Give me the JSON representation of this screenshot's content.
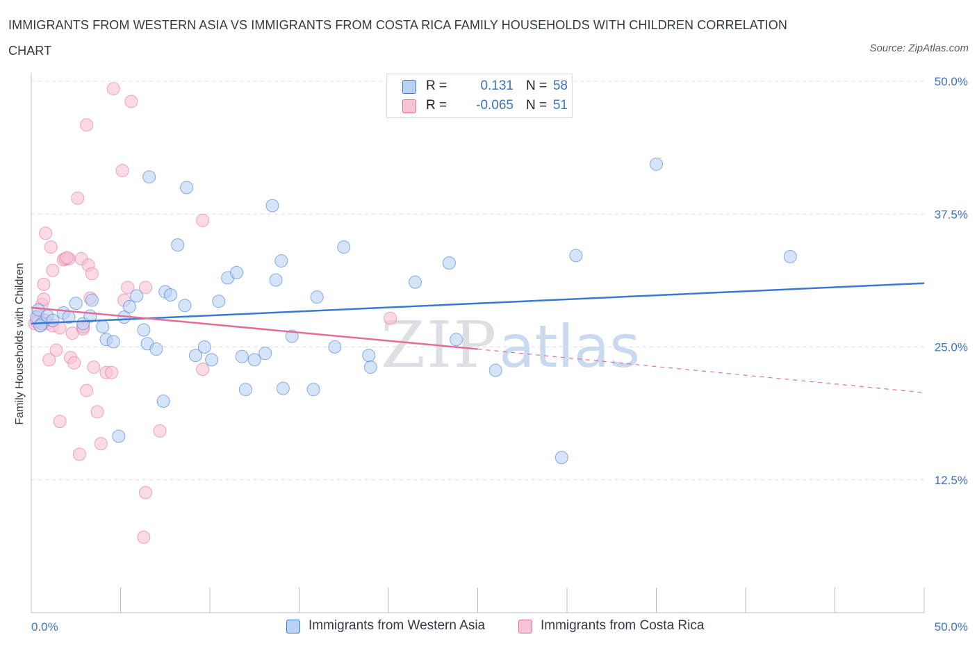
{
  "title": "IMMIGRANTS FROM WESTERN ASIA VS IMMIGRANTS FROM COSTA RICA FAMILY HOUSEHOLDS WITH CHILDREN CORRELATION CHART",
  "source": "Source: ZipAtlas.com",
  "watermark": {
    "zip": "ZIP",
    "atlas": "atlas"
  },
  "colors": {
    "blue": "#3a78d4",
    "blue_fill": "#b9d2f3",
    "pink": "#e36d96",
    "pink_fill": "#f6c3d4",
    "axis_text": "#3d72c4",
    "grid": "#d9dce2"
  },
  "stats": {
    "r_label": "R =",
    "n_label": "N =",
    "blue": {
      "r": "0.131",
      "n": "58"
    },
    "pink": {
      "r": "-0.065",
      "n": "51"
    }
  },
  "legend": {
    "blue_label": "Immigrants from Western Asia",
    "pink_label": "Immigrants from Costa Rica"
  },
  "chart_data": {
    "type": "scatter",
    "title": "IMMIGRANTS FROM WESTERN ASIA VS IMMIGRANTS FROM COSTA RICA FAMILY HOUSEHOLDS WITH CHILDREN CORRELATION CHART",
    "xlabel": "",
    "ylabel": "Family Households with Children",
    "xlim": [
      0,
      50
    ],
    "ylim": [
      0,
      50
    ],
    "x_tick_labels": [
      {
        "value": 0,
        "label": "0.0%"
      },
      {
        "value": 50,
        "label": "50.0%"
      }
    ],
    "y_tick_labels": [
      {
        "value": 50,
        "label": "50.0%"
      },
      {
        "value": 37.5,
        "label": "37.5%"
      },
      {
        "value": 25,
        "label": "25.0%"
      },
      {
        "value": 12.5,
        "label": "12.5%"
      }
    ],
    "x_minor_ticks": [
      5,
      10,
      15,
      20,
      25,
      30,
      35,
      40,
      45,
      50
    ],
    "series": [
      {
        "name": "Immigrants from Western Asia",
        "color": "#3a78d4",
        "trend": {
          "x0": 0,
          "y0": 27.2,
          "x1": 50,
          "y1": 31.0
        },
        "points": [
          [
            0.3,
            27.8
          ],
          [
            0.6,
            27.2
          ],
          [
            0.4,
            28.5
          ],
          [
            0.9,
            27.9
          ],
          [
            0.5,
            27.0
          ],
          [
            1.2,
            27.5
          ],
          [
            1.8,
            28.2
          ],
          [
            2.5,
            29.1
          ],
          [
            3.4,
            29.4
          ],
          [
            2.1,
            27.8
          ],
          [
            2.9,
            27.2
          ],
          [
            3.3,
            27.9
          ],
          [
            4.0,
            26.9
          ],
          [
            4.2,
            25.7
          ],
          [
            4.6,
            25.5
          ],
          [
            5.2,
            27.8
          ],
          [
            5.5,
            28.8
          ],
          [
            5.9,
            29.8
          ],
          [
            6.3,
            26.6
          ],
          [
            6.5,
            25.3
          ],
          [
            7.0,
            24.8
          ],
          [
            7.5,
            30.2
          ],
          [
            7.8,
            29.9
          ],
          [
            8.6,
            28.9
          ],
          [
            8.2,
            34.6
          ],
          [
            9.2,
            24.2
          ],
          [
            9.7,
            25.0
          ],
          [
            10.1,
            23.8
          ],
          [
            11.0,
            31.5
          ],
          [
            11.5,
            32.0
          ],
          [
            10.5,
            29.3
          ],
          [
            11.8,
            24.1
          ],
          [
            12.5,
            23.8
          ],
          [
            13.1,
            24.4
          ],
          [
            12.0,
            21.0
          ],
          [
            13.5,
            38.3
          ],
          [
            14.0,
            33.1
          ],
          [
            13.7,
            31.3
          ],
          [
            14.1,
            21.1
          ],
          [
            14.6,
            26.0
          ],
          [
            15.8,
            21.0
          ],
          [
            16.0,
            29.7
          ],
          [
            17.5,
            34.4
          ],
          [
            17.0,
            25.0
          ],
          [
            18.9,
            24.2
          ],
          [
            19.0,
            23.1
          ],
          [
            21.5,
            31.1
          ],
          [
            23.4,
            32.9
          ],
          [
            23.8,
            25.7
          ],
          [
            26.0,
            22.8
          ],
          [
            30.5,
            33.6
          ],
          [
            29.7,
            14.6
          ],
          [
            35.0,
            42.2
          ],
          [
            42.5,
            33.5
          ],
          [
            6.6,
            41.0
          ],
          [
            8.7,
            40.0
          ],
          [
            4.9,
            16.6
          ],
          [
            7.4,
            19.9
          ]
        ]
      },
      {
        "name": "Immigrants from Costa Rica",
        "color": "#e36d96",
        "trend": {
          "x0": 0,
          "y0": 28.7,
          "x1": 25,
          "y1": 24.8
        },
        "trend_dashed": {
          "x0": 25,
          "y0": 24.8,
          "x1": 50,
          "y1": 20.7
        },
        "points": [
          [
            0.2,
            27.2
          ],
          [
            0.4,
            28.0
          ],
          [
            0.6,
            29.0
          ],
          [
            0.8,
            27.5
          ],
          [
            0.5,
            27.0
          ],
          [
            0.3,
            27.4
          ],
          [
            0.7,
            29.5
          ],
          [
            0.9,
            27.2
          ],
          [
            1.2,
            27.0
          ],
          [
            1.6,
            26.8
          ],
          [
            0.7,
            30.9
          ],
          [
            0.8,
            35.7
          ],
          [
            1.1,
            34.4
          ],
          [
            1.2,
            32.2
          ],
          [
            1.8,
            33.2
          ],
          [
            1.9,
            33.3
          ],
          [
            2.1,
            33.3
          ],
          [
            2.8,
            33.3
          ],
          [
            3.2,
            32.7
          ],
          [
            3.4,
            31.9
          ],
          [
            3.3,
            29.6
          ],
          [
            2.3,
            26.3
          ],
          [
            2.9,
            26.7
          ],
          [
            2.2,
            24.0
          ],
          [
            2.4,
            23.5
          ],
          [
            1.4,
            24.7
          ],
          [
            1.0,
            23.8
          ],
          [
            3.5,
            23.1
          ],
          [
            4.2,
            22.6
          ],
          [
            4.5,
            22.6
          ],
          [
            3.1,
            20.9
          ],
          [
            3.7,
            18.9
          ],
          [
            1.6,
            18.0
          ],
          [
            3.9,
            15.9
          ],
          [
            2.7,
            14.9
          ],
          [
            5.2,
            29.4
          ],
          [
            5.4,
            30.6
          ],
          [
            6.4,
            30.6
          ],
          [
            7.2,
            17.1
          ],
          [
            9.6,
            36.9
          ],
          [
            9.6,
            22.9
          ],
          [
            20.1,
            27.7
          ],
          [
            4.6,
            49.3
          ],
          [
            5.6,
            48.1
          ],
          [
            3.1,
            45.9
          ],
          [
            5.1,
            41.6
          ],
          [
            2.6,
            39.0
          ],
          [
            6.4,
            11.3
          ],
          [
            6.3,
            7.1
          ],
          [
            2.9,
            26.9
          ],
          [
            2.0,
            33.4
          ]
        ]
      }
    ]
  }
}
